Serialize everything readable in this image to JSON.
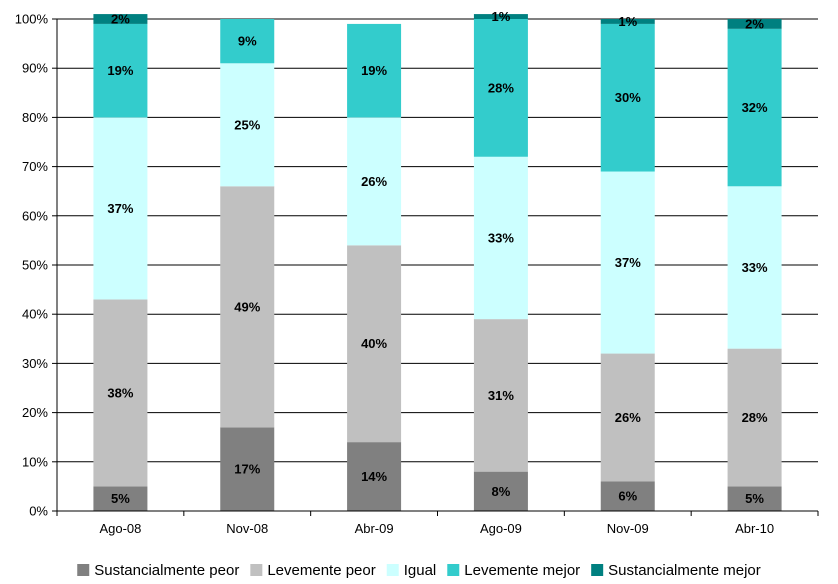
{
  "chart_data": {
    "type": "bar",
    "stacked": true,
    "percent": true,
    "categories": [
      "Ago-08",
      "Nov-08",
      "Abr-09",
      "Ago-09",
      "Nov-09",
      "Abr-10"
    ],
    "series": [
      {
        "name": "Sustancialmente peor",
        "color": "#808080",
        "values": [
          5,
          17,
          14,
          8,
          6,
          5
        ],
        "labels": [
          "5%",
          "17%",
          "14%",
          "8%",
          "6%",
          "5%"
        ]
      },
      {
        "name": "Levemente peor",
        "color": "#c0c0c0",
        "values": [
          38,
          49,
          40,
          31,
          26,
          28
        ],
        "labels": [
          "38%",
          "49%",
          "40%",
          "31%",
          "26%",
          "28%"
        ]
      },
      {
        "name": "Igual",
        "color": "#ccffff",
        "values": [
          37,
          25,
          26,
          33,
          37,
          33
        ],
        "labels": [
          "37%",
          "25%",
          "26%",
          "33%",
          "37%",
          "33%"
        ]
      },
      {
        "name": "Levemente mejor",
        "color": "#33cccc",
        "values": [
          19,
          9,
          19,
          28,
          30,
          32
        ],
        "labels": [
          "19%",
          "9%",
          "19%",
          "28%",
          "30%",
          "32%"
        ]
      },
      {
        "name": "Sustancialmente mejor",
        "color": "#008080",
        "values": [
          2,
          0,
          0,
          1,
          1,
          2
        ],
        "labels": [
          "2%",
          "",
          "",
          "1%",
          "1%",
          "2%"
        ]
      }
    ],
    "ylim": [
      0,
      100
    ],
    "yticks": [
      "0%",
      "10%",
      "20%",
      "30%",
      "40%",
      "50%",
      "60%",
      "70%",
      "80%",
      "90%",
      "100%"
    ],
    "grid": true,
    "legend_position": "bottom"
  }
}
